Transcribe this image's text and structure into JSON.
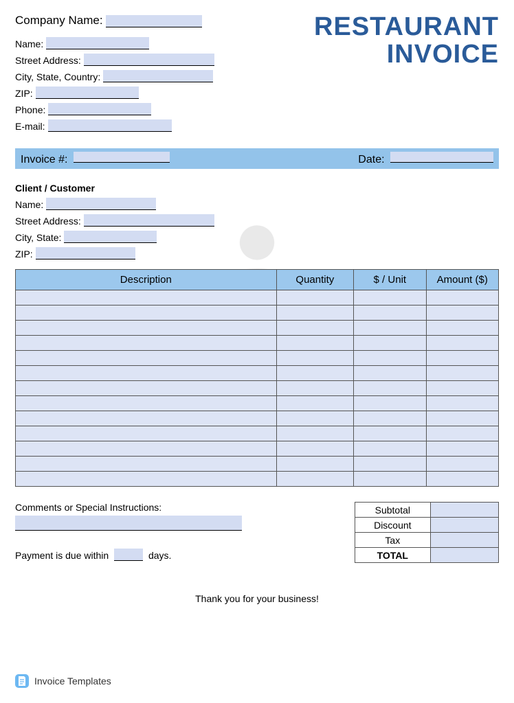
{
  "colors": {
    "title": "#2a5b99",
    "fill_light": "#d3dcf2",
    "bar_blue": "#93c3ea",
    "header_blue": "#9cc8ed",
    "row_fill": "#dde4f5",
    "totals_fill": "#d9e1f4",
    "footer_icon": "#6db8f2",
    "watermark": "#888888"
  },
  "title": {
    "line1": "RESTAURANT",
    "line2": "INVOICE"
  },
  "company": {
    "company_name_label": "Company Name:",
    "name_label": "Name:",
    "street_label": "Street Address:",
    "city_label": "City, State, Country:",
    "zip_label": "ZIP:",
    "phone_label": "Phone:",
    "email_label": "E-mail:",
    "field_widths": {
      "company_name": 140,
      "name": 150,
      "street": 190,
      "city": 160,
      "zip": 150,
      "phone": 150,
      "email": 180
    }
  },
  "invoice_bar": {
    "invoice_label": "Invoice #:",
    "date_label": "Date:",
    "invoice_fill_width": 140,
    "date_fill_width": 150
  },
  "client": {
    "section_title": "Client / Customer",
    "name_label": "Name:",
    "street_label": "Street Address:",
    "city_label": "City, State:",
    "zip_label": "ZIP:",
    "field_widths": {
      "name": 160,
      "street": 190,
      "city": 135,
      "zip": 145
    }
  },
  "items_table": {
    "columns": [
      "Description",
      "Quantity",
      "$ / Unit",
      "Amount ($)"
    ],
    "col_widths_pct": [
      54,
      16,
      15,
      15
    ],
    "row_count": 13
  },
  "comments": {
    "label": "Comments or Special Instructions:",
    "payment_prefix": "Payment is due within",
    "payment_suffix": "days."
  },
  "totals": {
    "rows": [
      "Subtotal",
      "Discount",
      "Tax",
      "TOTAL"
    ]
  },
  "thanks": "Thank you for your business!",
  "footer": "Invoice Templates"
}
